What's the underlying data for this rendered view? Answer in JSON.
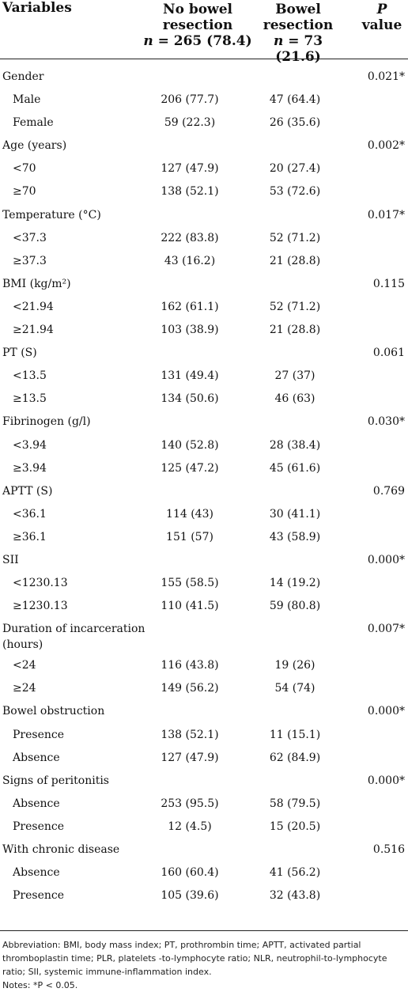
{
  "header": {
    "variables": "Variables",
    "col1_line1": "No bowel",
    "col1_line2_n": "n",
    "col1_line2_rest": " = 265 (78.4)",
    "col2_line1": "Bowel",
    "col2_line2": "resection",
    "col2_line3_n": "n",
    "col2_line3_rest": " = 73 (21.6)",
    "col1_resection": "resection",
    "p_line1": "P",
    "p_line2": "value"
  },
  "rows": [
    {
      "label": "Gender",
      "c1": "",
      "c2": "",
      "p": "0.021*",
      "sub": false
    },
    {
      "label": "Male",
      "c1": "206 (77.7)",
      "c2": "47 (64.4)",
      "p": "",
      "sub": true
    },
    {
      "label": "Female",
      "c1": "59 (22.3)",
      "c2": "26 (35.6)",
      "p": "",
      "sub": true
    },
    {
      "label": "Age (years)",
      "c1": "",
      "c2": "",
      "p": "0.002*",
      "sub": false
    },
    {
      "label": "<70",
      "c1": "127 (47.9)",
      "c2": "20 (27.4)",
      "p": "",
      "sub": true
    },
    {
      "label": "≥70",
      "c1": "138 (52.1)",
      "c2": "53 (72.6)",
      "p": "",
      "sub": true
    },
    {
      "label": "Temperature (°C)",
      "c1": "",
      "c2": "",
      "p": "0.017*",
      "sub": false
    },
    {
      "label": "<37.3",
      "c1": "222 (83.8)",
      "c2": "52 (71.2)",
      "p": "",
      "sub": true
    },
    {
      "label": "≥37.3",
      "c1": "43 (16.2)",
      "c2": "21 (28.8)",
      "p": "",
      "sub": true
    },
    {
      "label": "BMI (kg/m²)",
      "c1": "",
      "c2": "",
      "p": "0.115",
      "sub": false
    },
    {
      "label": "<21.94",
      "c1": "162 (61.1)",
      "c2": "52 (71.2)",
      "p": "",
      "sub": true
    },
    {
      "label": "≥21.94",
      "c1": "103 (38.9)",
      "c2": "21 (28.8)",
      "p": "",
      "sub": true
    },
    {
      "label": "PT (S)",
      "c1": "",
      "c2": "",
      "p": "0.061",
      "sub": false
    },
    {
      "label": "<13.5",
      "c1": "131 (49.4)",
      "c2": "27 (37)",
      "p": "",
      "sub": true
    },
    {
      "label": "≥13.5",
      "c1": "134 (50.6)",
      "c2": "46 (63)",
      "p": "",
      "sub": true
    },
    {
      "label": "Fibrinogen (g/l)",
      "c1": "",
      "c2": "",
      "p": "0.030*",
      "sub": false
    },
    {
      "label": "<3.94",
      "c1": "140 (52.8)",
      "c2": "28 (38.4)",
      "p": "",
      "sub": true
    },
    {
      "label": "≥3.94",
      "c1": "125 (47.2)",
      "c2": "45 (61.6)",
      "p": "",
      "sub": true
    },
    {
      "label": "APTT (S)",
      "c1": "",
      "c2": "",
      "p": "0.769",
      "sub": false
    },
    {
      "label": "<36.1",
      "c1": "114 (43)",
      "c2": "30 (41.1)",
      "p": "",
      "sub": true
    },
    {
      "label": "≥36.1",
      "c1": "151 (57)",
      "c2": "43 (58.9)",
      "p": "",
      "sub": true
    },
    {
      "label": "SII",
      "c1": "",
      "c2": "",
      "p": "0.000*",
      "sub": false
    },
    {
      "label": "<1230.13",
      "c1": "155 (58.5)",
      "c2": "14 (19.2)",
      "p": "",
      "sub": true
    },
    {
      "label": "≥1230.13",
      "c1": "110 (41.5)",
      "c2": "59 (80.8)",
      "p": "",
      "sub": true
    },
    {
      "label": "Duration of incarceration (hours)",
      "c1": "",
      "c2": "",
      "p": "0.007*",
      "sub": false,
      "tall": true
    },
    {
      "label": "<24",
      "c1": "116 (43.8)",
      "c2": "19 (26)",
      "p": "",
      "sub": true
    },
    {
      "label": "≥24",
      "c1": "149 (56.2)",
      "c2": "54 (74)",
      "p": "",
      "sub": true
    },
    {
      "label": "Bowel obstruction",
      "c1": "",
      "c2": "",
      "p": "0.000*",
      "sub": false
    },
    {
      "label": "Presence",
      "c1": "138 (52.1)",
      "c2": "11 (15.1)",
      "p": "",
      "sub": true
    },
    {
      "label": "Absence",
      "c1": "127 (47.9)",
      "c2": "62 (84.9)",
      "p": "",
      "sub": true
    },
    {
      "label": "Signs of peritonitis",
      "c1": "",
      "c2": "",
      "p": "0.000*",
      "sub": false
    },
    {
      "label": "Absence",
      "c1": "253 (95.5)",
      "c2": "58 (79.5)",
      "p": "",
      "sub": true
    },
    {
      "label": "Presence",
      "c1": "12 (4.5)",
      "c2": "15 (20.5)",
      "p": "",
      "sub": true
    },
    {
      "label": "With chronic disease",
      "c1": "",
      "c2": "",
      "p": "0.516",
      "sub": false
    },
    {
      "label": "Absence",
      "c1": "160 (60.4)",
      "c2": "41 (56.2)",
      "p": "",
      "sub": true
    },
    {
      "label": "Presence",
      "c1": "105 (39.6)",
      "c2": "32 (43.8)",
      "p": "",
      "sub": true
    }
  ],
  "footnote": {
    "abbreviation": "Abbreviation: BMI, body mass index; PT, prothrombin time; APTT, activated partial thromboplastin time; PLR, platelets -to-lymphocyte ratio; NLR, neutrophil-to-lymphocyte ratio; SII, systemic immune-inflammation index.",
    "notes": "Notes: *P < 0.05."
  }
}
